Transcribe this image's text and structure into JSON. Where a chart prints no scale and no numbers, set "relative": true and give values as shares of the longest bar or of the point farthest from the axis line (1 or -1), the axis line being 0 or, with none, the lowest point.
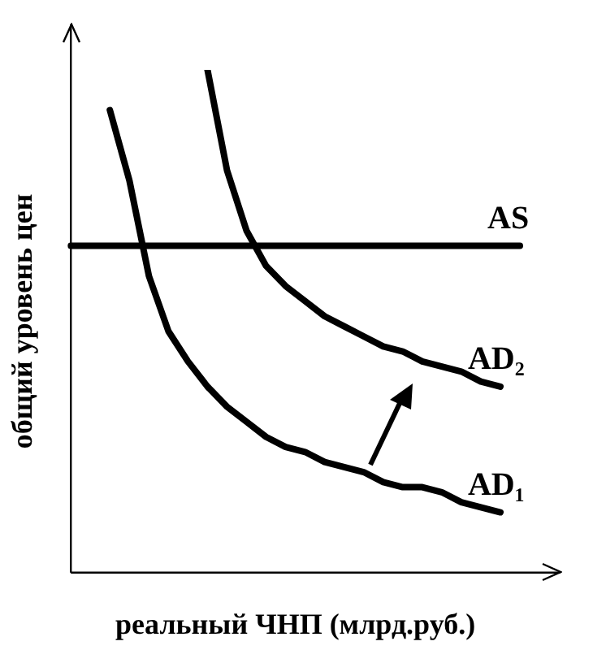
{
  "chart_data": {
    "type": "line",
    "relative": true,
    "xlabel": "реальный ЧНП (млрд.руб.)",
    "ylabel": "общий уровень цен",
    "tick_labels": false,
    "grid": false,
    "legend": false,
    "marker": "none",
    "line_style": "solid",
    "categories": [
      null,
      null,
      null,
      null,
      null,
      null,
      null,
      null,
      null,
      null,
      null,
      null,
      null,
      null,
      null,
      null,
      null,
      null,
      null,
      null,
      null,
      null,
      null,
      null
    ],
    "series": [
      {
        "name": "AS",
        "color": "#000000",
        "values": [
          0.65,
          0.65,
          0.65,
          0.65,
          0.65,
          0.65,
          0.65,
          0.65,
          0.65,
          0.65,
          0.65,
          0.65,
          0.65,
          0.65,
          0.65,
          0.65,
          0.65,
          0.65,
          0.65,
          0.65,
          0.65,
          0.65,
          0.65,
          0.65
        ]
      },
      {
        "name": "AD₂",
        "color": "#000000",
        "values": [
          null,
          null,
          null,
          null,
          null,
          null,
          null,
          1,
          0.8,
          0.68,
          0.61,
          0.57,
          0.54,
          0.51,
          0.49,
          0.47,
          0.45,
          0.44,
          0.42,
          0.41,
          0.4,
          0.38,
          0.37,
          null
        ]
      },
      {
        "name": "AD₁",
        "color": "#000000",
        "values": [
          null,
          null,
          0.92,
          0.78,
          0.59,
          0.48,
          0.42,
          0.37,
          0.33,
          0.3,
          0.27,
          0.25,
          0.24,
          0.22,
          0.21,
          0.2,
          0.18,
          0.17,
          0.17,
          0.16,
          0.14,
          0.13,
          0.12,
          null
        ]
      }
    ]
  }
}
